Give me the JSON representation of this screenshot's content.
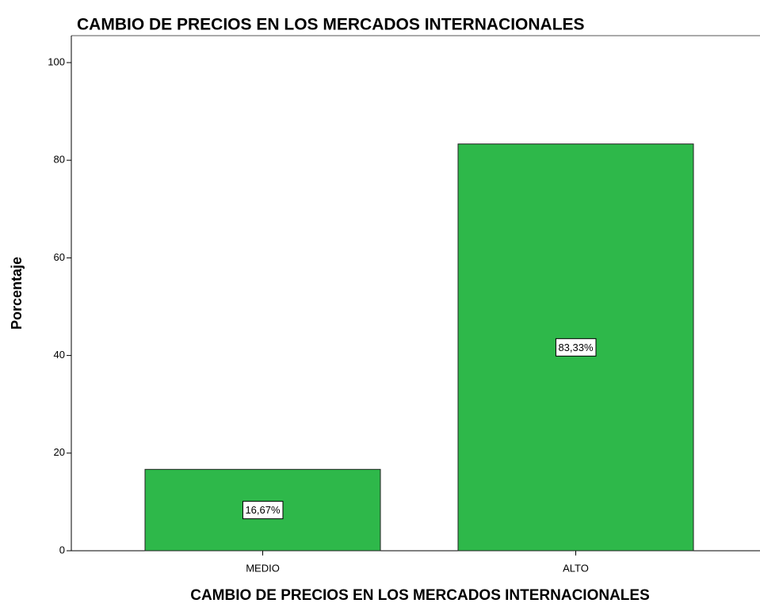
{
  "chart_data": {
    "type": "bar",
    "title": "CAMBIO DE PRECIOS EN LOS MERCADOS INTERNACIONALES",
    "x_label": "CAMBIO DE PRECIOS EN LOS MERCADOS INTERNACIONALES",
    "y_label": "Porcentaje",
    "categories": [
      "MEDIO",
      "ALTO"
    ],
    "values": [
      16.67,
      83.33
    ],
    "value_labels": [
      "16,67%",
      "83,33%"
    ],
    "color": "#2eb84a",
    "ylim": [
      0,
      100
    ],
    "yticks": [
      0,
      20,
      40,
      60,
      80,
      100
    ],
    "grid": false
  }
}
